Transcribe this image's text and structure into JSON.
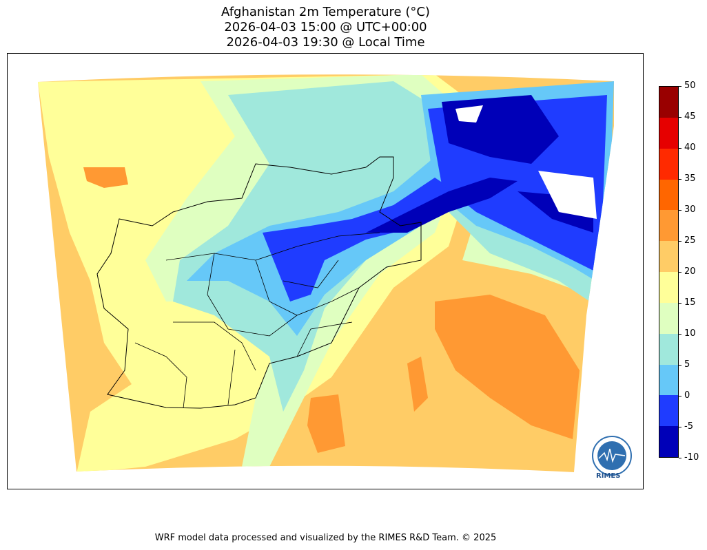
{
  "title": {
    "line1": "Afghanistan 2m Temperature (°C)",
    "line2": "2026-04-03 15:00 @ UTC+00:00",
    "line3": "2026-04-03 19:30 @ Local Time"
  },
  "colorbar": {
    "ticks": [
      "50",
      "45",
      "40",
      "35",
      "30",
      "25",
      "20",
      "15",
      "10",
      "5",
      "0",
      "-5",
      "-10"
    ],
    "bins": [
      {
        "range": "45-50",
        "color": "#990000"
      },
      {
        "range": "40-45",
        "color": "#e60000"
      },
      {
        "range": "35-40",
        "color": "#ff2a00"
      },
      {
        "range": "30-35",
        "color": "#ff6600"
      },
      {
        "range": "25-30",
        "color": "#ff9933"
      },
      {
        "range": "20-25",
        "color": "#ffcc66"
      },
      {
        "range": "15-20",
        "color": "#ffff99"
      },
      {
        "range": "10-15",
        "color": "#dfffc0"
      },
      {
        "range": "5-10",
        "color": "#a0e8dc"
      },
      {
        "range": "0-5",
        "color": "#66c8f8"
      },
      {
        "range": "-5-0",
        "color": "#1f3cff"
      },
      {
        "range": "-10--5",
        "color": "#0000b8"
      }
    ]
  },
  "logo": {
    "text": "RIMES"
  },
  "footer": "WRF model data processed and visualized by the RIMES R&D Team. © 2025"
}
